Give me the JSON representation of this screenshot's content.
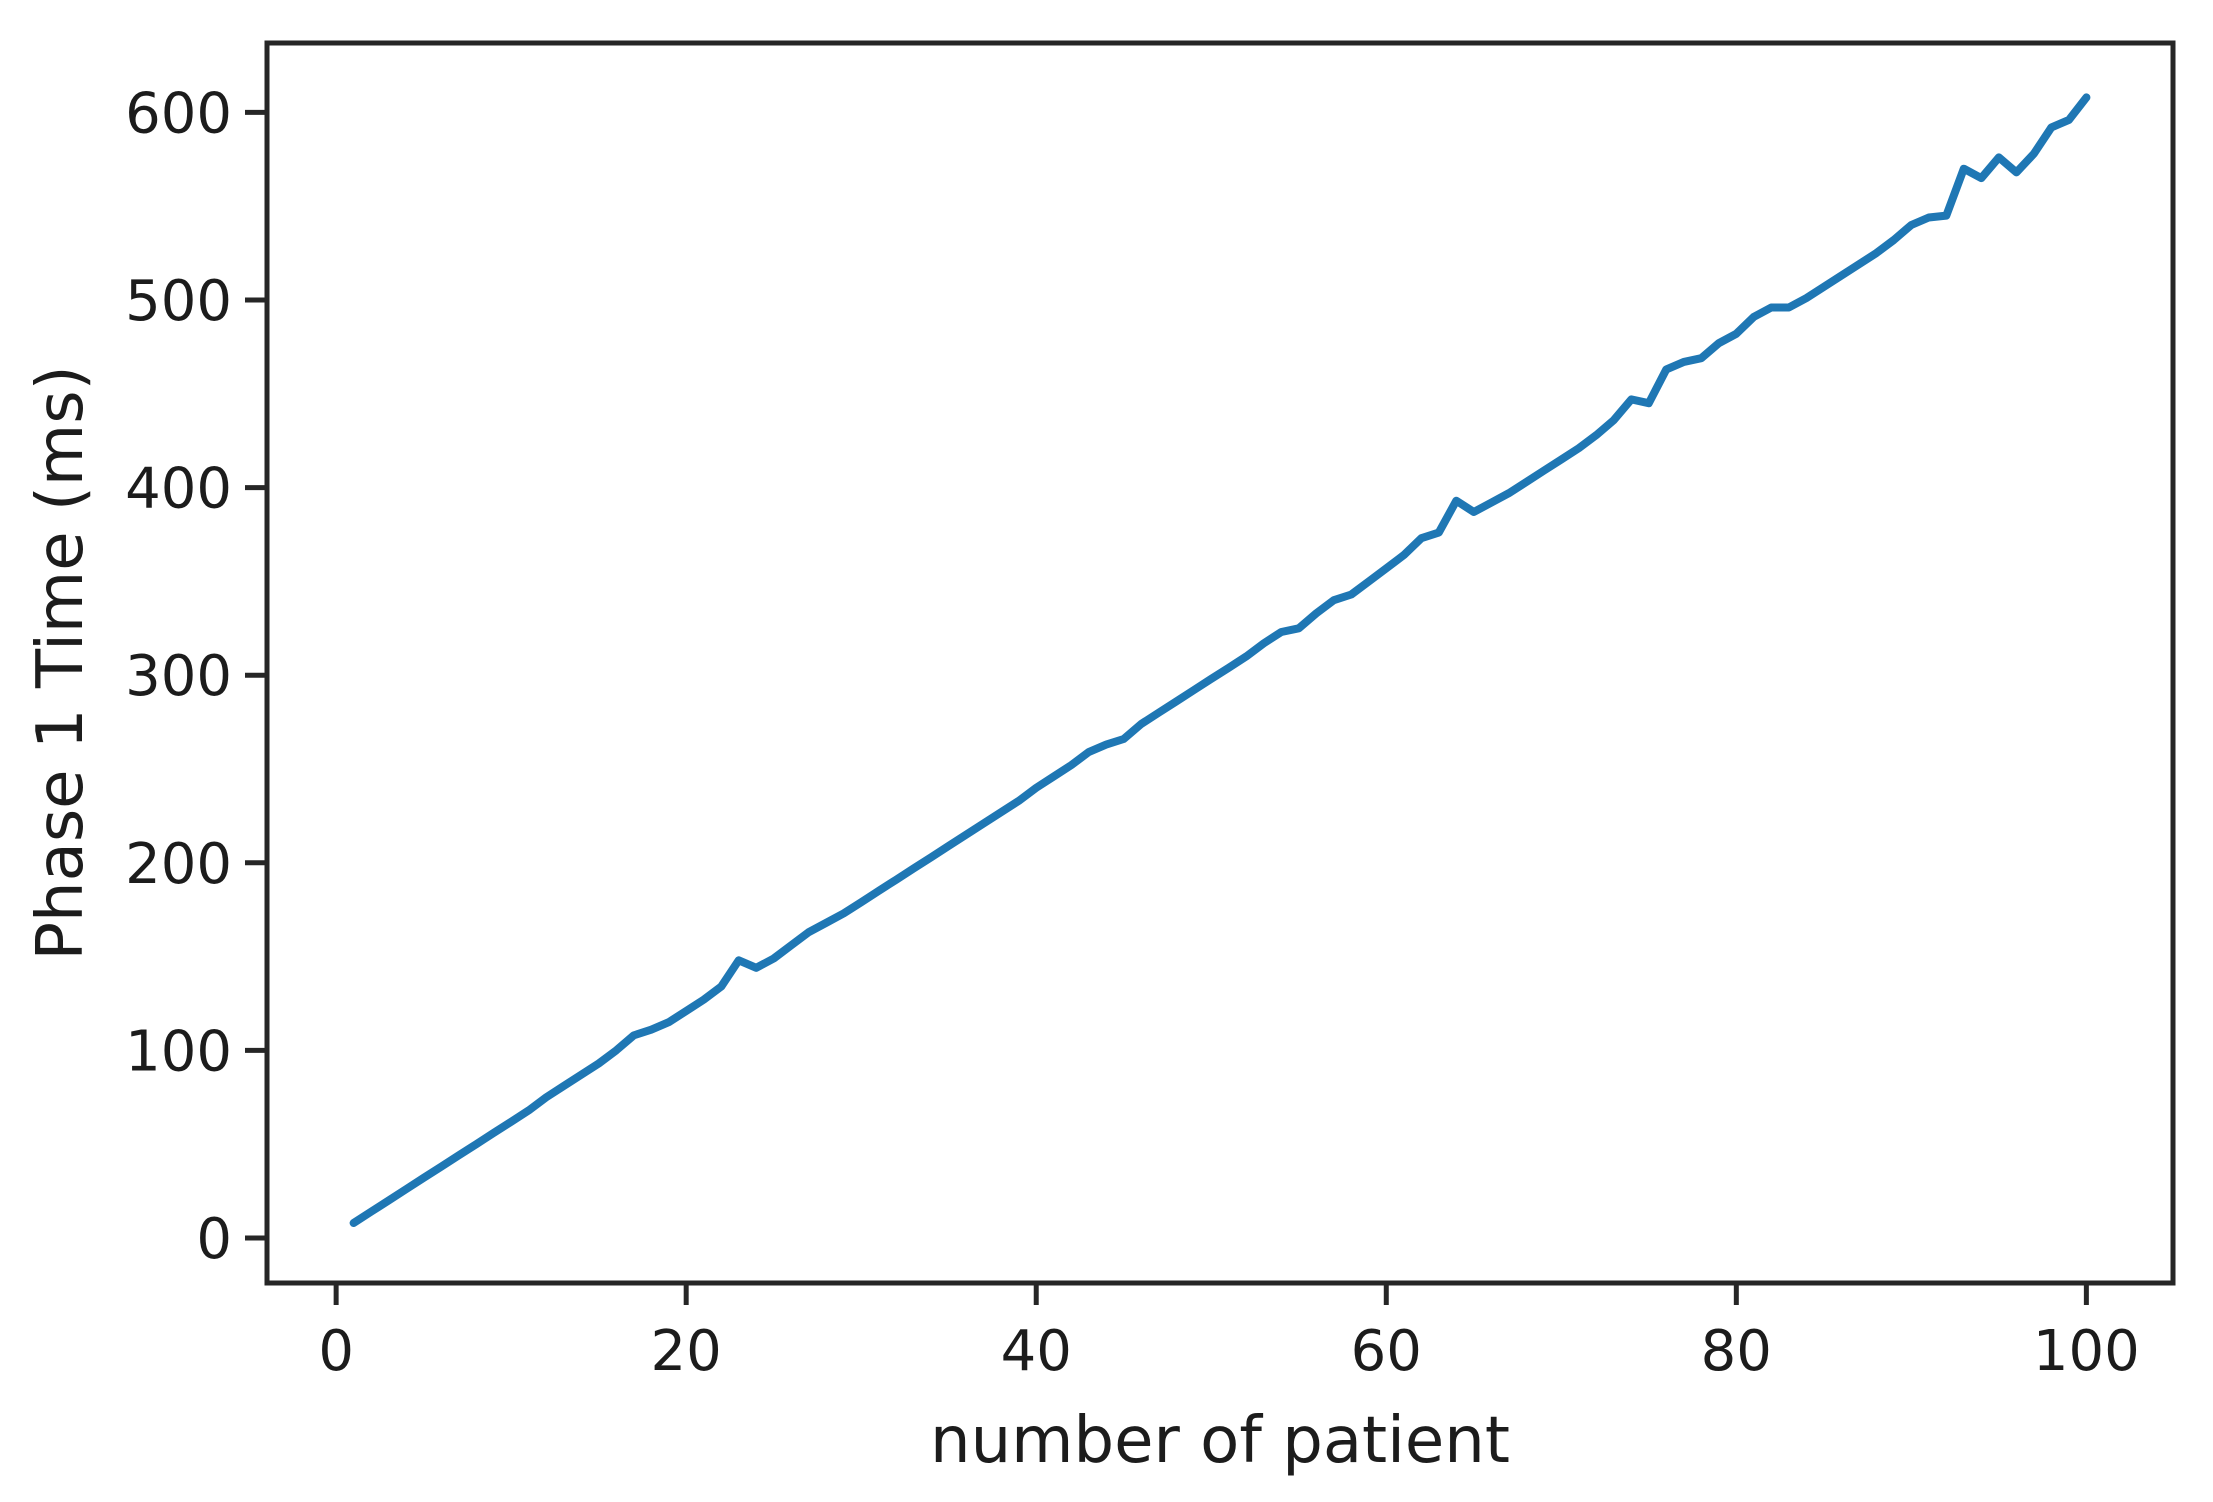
{
  "figure": {
    "background": "#ffffff"
  },
  "chart_data": {
    "type": "line",
    "title": "",
    "xlabel": "number of patient",
    "ylabel": "Phase 1 Time (ms)",
    "x_start": 1,
    "x_step": 1,
    "x_end": 100,
    "values": [
      8,
      14,
      20,
      26,
      32,
      38,
      44,
      50,
      56,
      62,
      68,
      75,
      81,
      87,
      93,
      100,
      108,
      111,
      115,
      121,
      127,
      134,
      148,
      144,
      149,
      156,
      163,
      168,
      173,
      179,
      185,
      191,
      197,
      203,
      209,
      215,
      221,
      227,
      233,
      240,
      246,
      252,
      259,
      263,
      266,
      274,
      280,
      286,
      292,
      298,
      304,
      310,
      317,
      323,
      325,
      333,
      340,
      343,
      350,
      357,
      364,
      373,
      376,
      393,
      387,
      392,
      397,
      403,
      409,
      415,
      421,
      428,
      436,
      447,
      445,
      463,
      467,
      469,
      477,
      482,
      491,
      496,
      496,
      501,
      507,
      513,
      519,
      525,
      532,
      540,
      544,
      545,
      570,
      565,
      576,
      568,
      578,
      592,
      596,
      608
    ],
    "xticks": [
      0,
      20,
      40,
      60,
      80,
      100
    ],
    "yticks": [
      0,
      100,
      200,
      300,
      400,
      500,
      600
    ],
    "xlim": [
      -3.95,
      104.95
    ],
    "ylim": [
      -24,
      637
    ],
    "grid": false,
    "legend": null,
    "line_color": "#1f77b4",
    "axis_color": "#262626"
  }
}
